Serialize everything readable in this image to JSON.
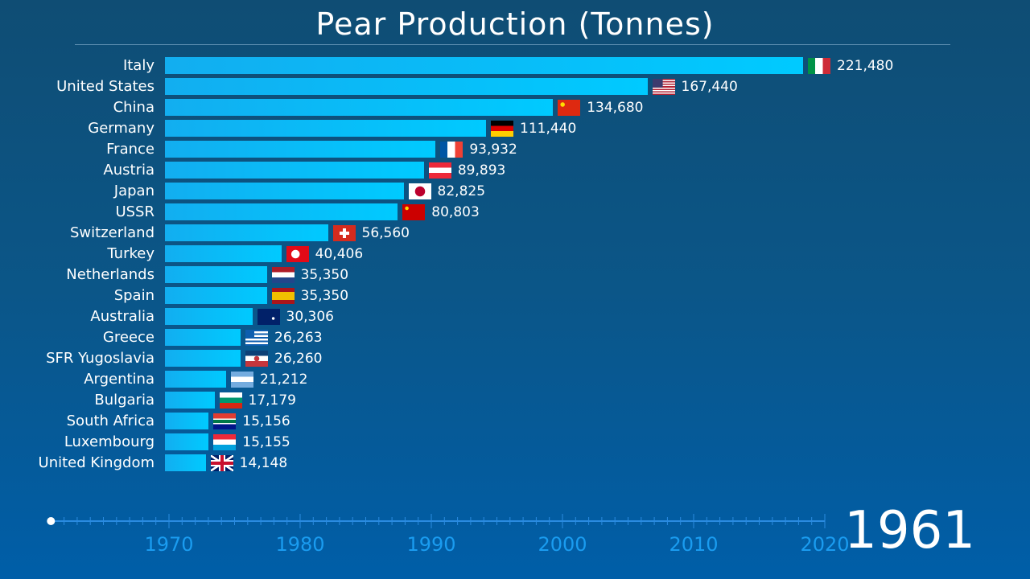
{
  "chart_data": {
    "type": "bar",
    "orientation": "horizontal",
    "title": "Pear Production (Tonnes)",
    "year": "1961",
    "categories": [
      "Italy",
      "United States",
      "China",
      "Germany",
      "France",
      "Austria",
      "Japan",
      "USSR",
      "Switzerland",
      "Turkey",
      "Netherlands",
      "Spain",
      "Australia",
      "Greece",
      "SFR Yugoslavia",
      "Argentina",
      "Bulgaria",
      "South Africa",
      "Luxembourg",
      "United Kingdom"
    ],
    "values": [
      221480,
      167440,
      134680,
      111440,
      93932,
      89893,
      82825,
      80803,
      56560,
      40406,
      35350,
      35350,
      30306,
      26263,
      26260,
      21212,
      17179,
      15156,
      15155,
      14148
    ],
    "value_labels": [
      "221,480",
      "167,440",
      "134,680",
      "111,440",
      "93,932",
      "89,893",
      "82,825",
      "80,803",
      "56,560",
      "40,406",
      "35,350",
      "35,350",
      "30,306",
      "26,263",
      "26,260",
      "21,212",
      "17,179",
      "15,156",
      "15,155",
      "14,148"
    ],
    "flags": [
      "italy-flag",
      "usa-flag",
      "china-flag",
      "germany-flag",
      "france-flag",
      "austria-flag",
      "japan-flag",
      "ussr-flag",
      "switzerland-flag",
      "turkey-flag",
      "netherlands-flag",
      "spain-flag",
      "australia-flag",
      "greece-flag",
      "yugoslavia-flag",
      "argentina-flag",
      "bulgaria-flag",
      "south-africa-flag",
      "luxembourg-flag",
      "uk-flag"
    ],
    "bar_color": "#00c8ff",
    "timeline": {
      "start": 1961,
      "end": 2020,
      "current": 1961,
      "ticks": [
        "1970",
        "1980",
        "1990",
        "2000",
        "2010",
        "2020"
      ]
    }
  }
}
